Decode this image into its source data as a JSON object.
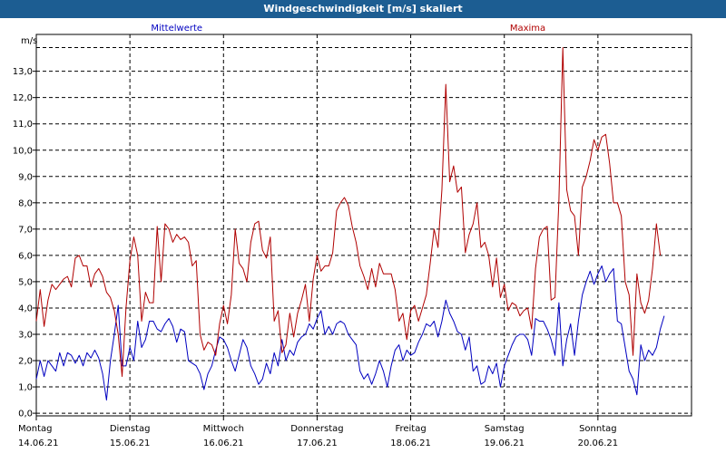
{
  "window": {
    "title": "Windgeschwindigkeit [m/s] skaliert"
  },
  "chart_data": {
    "type": "line",
    "title": "Windgeschwindigkeit [m/s] skaliert",
    "ylabel": "m/s",
    "ylim": [
      -0.1,
      14.4
    ],
    "xlim": [
      0,
      168
    ],
    "grid": true,
    "y_ticks": [
      "0,0",
      "1,0",
      "2,0",
      "3,0",
      "4,0",
      "5,0",
      "6,0",
      "7,0",
      "8,0",
      "9,0",
      "10,0",
      "11,0",
      "12,0",
      "13,0"
    ],
    "x_ticks": [
      {
        "day": "Montag",
        "date": "14.06.21"
      },
      {
        "day": "Dienstag",
        "date": "15.06.21"
      },
      {
        "day": "Mittwoch",
        "date": "16.06.21"
      },
      {
        "day": "Donnerstag",
        "date": "17.06.21"
      },
      {
        "day": "Freitag",
        "date": "18.06.21"
      },
      {
        "day": "Samstag",
        "date": "19.06.21"
      },
      {
        "day": "Sonntag",
        "date": "20.06.21"
      }
    ],
    "series": [
      {
        "name": "Mittelwerte",
        "color": "#0000c0",
        "values": [
          1.3,
          2.0,
          1.4,
          2.0,
          1.8,
          1.6,
          2.3,
          1.8,
          2.3,
          2.2,
          1.9,
          2.2,
          1.8,
          2.3,
          2.1,
          2.4,
          2.1,
          1.5,
          0.5,
          2.0,
          3.0,
          4.1,
          1.8,
          1.8,
          2.5,
          2.0,
          3.5,
          2.5,
          2.8,
          3.5,
          3.5,
          3.2,
          3.1,
          3.4,
          3.6,
          3.3,
          2.7,
          3.2,
          3.1,
          2.0,
          1.9,
          1.8,
          1.5,
          0.9,
          1.5,
          1.8,
          2.4,
          2.9,
          2.8,
          2.5,
          2.0,
          1.6,
          2.2,
          2.8,
          2.5,
          1.8,
          1.5,
          1.1,
          1.3,
          1.9,
          1.5,
          2.3,
          1.8,
          2.8,
          2.0,
          2.4,
          2.2,
          2.7,
          2.9,
          3.0,
          3.4,
          3.2,
          3.6,
          3.9,
          3.0,
          3.3,
          3.0,
          3.4,
          3.5,
          3.4,
          3.0,
          2.8,
          2.6,
          1.6,
          1.3,
          1.5,
          1.1,
          1.5,
          2.0,
          1.6,
          1.0,
          1.8,
          2.4,
          2.6,
          2.0,
          2.4,
          2.2,
          2.3,
          2.7,
          3.0,
          3.4,
          3.3,
          3.5,
          2.9,
          3.5,
          4.3,
          3.8,
          3.5,
          3.1,
          3.0,
          2.4,
          2.9,
          1.6,
          1.8,
          1.1,
          1.2,
          1.8,
          1.5,
          1.9,
          1.0,
          1.8,
          2.2,
          2.6,
          2.9,
          3.0,
          3.0,
          2.8,
          2.2,
          3.6,
          3.5,
          3.5,
          3.2,
          2.8,
          2.2,
          4.2,
          1.8,
          2.8,
          3.4,
          2.2,
          3.5,
          4.5,
          5.0,
          5.4,
          4.9,
          5.3,
          5.6,
          5.0,
          5.3,
          5.5,
          3.5,
          3.4,
          2.5,
          1.6,
          1.3,
          0.7,
          2.6,
          2.0,
          2.4,
          2.2,
          2.5,
          3.2,
          3.7
        ]
      },
      {
        "name": "Maxima",
        "color": "#b00000",
        "values": [
          3.5,
          4.7,
          3.3,
          4.3,
          4.9,
          4.7,
          4.9,
          5.1,
          5.2,
          4.8,
          5.9,
          6.0,
          5.6,
          5.6,
          4.8,
          5.3,
          5.5,
          5.2,
          4.6,
          4.4,
          3.9,
          3.0,
          1.4,
          4.0,
          5.8,
          6.7,
          6.0,
          3.5,
          4.6,
          4.2,
          4.2,
          7.1,
          5.0,
          7.2,
          7.0,
          6.5,
          6.8,
          6.6,
          6.7,
          6.5,
          5.6,
          5.8,
          3.0,
          2.4,
          2.7,
          2.6,
          2.2,
          3.4,
          4.1,
          3.4,
          4.5,
          7.0,
          5.7,
          5.5,
          5.0,
          6.5,
          7.2,
          7.3,
          6.2,
          5.9,
          6.7,
          3.5,
          3.9,
          2.3,
          2.6,
          3.8,
          2.9,
          3.8,
          4.3,
          4.9,
          3.5,
          5.1,
          6.0,
          5.4,
          5.6,
          5.6,
          6.1,
          7.7,
          8.0,
          8.2,
          7.9,
          7.1,
          6.5,
          5.6,
          5.2,
          4.7,
          5.5,
          4.8,
          5.7,
          5.3,
          5.3,
          5.3,
          4.7,
          3.5,
          3.8,
          2.8,
          3.9,
          4.1,
          3.5,
          4.0,
          4.5,
          5.7,
          7.0,
          6.3,
          8.5,
          12.5,
          8.8,
          9.4,
          8.4,
          8.6,
          6.1,
          6.8,
          7.2,
          8.0,
          6.3,
          6.5,
          6.0,
          4.8,
          5.9,
          4.4,
          4.9,
          3.9,
          4.2,
          4.1,
          3.7,
          3.9,
          4.0,
          3.2,
          5.5,
          6.7,
          7.0,
          7.1,
          4.3,
          4.4,
          8.1,
          13.9,
          8.5,
          7.7,
          7.5,
          6.0,
          8.6,
          9.0,
          9.6,
          10.4,
          10.0,
          10.5,
          10.6,
          9.5,
          8.0,
          8.0,
          7.5,
          5.0,
          4.5,
          2.2,
          5.3,
          4.2,
          3.8,
          4.3,
          5.5,
          7.2,
          6.0
        ]
      }
    ]
  }
}
